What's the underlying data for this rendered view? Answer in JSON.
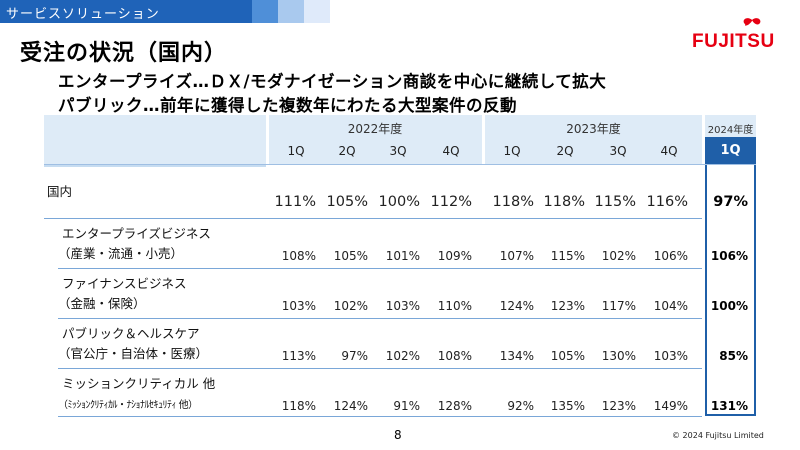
{
  "banner": {
    "label": "サービスソリューション"
  },
  "title": "受注の状況（国内）",
  "subtitles": [
    "エンタープライズ…ＤＸ/モダナイゼーション商談を中心に継続して拡大",
    "パブリック…前年に獲得した複数年にわたる大型案件の反動"
  ],
  "logo": {
    "text": "FUJITSU"
  },
  "table": {
    "years": [
      "2022年度",
      "2023年度",
      "2024年度"
    ],
    "quarters_2022": [
      "1Q",
      "2Q",
      "3Q",
      "4Q"
    ],
    "quarters_2023": [
      "1Q",
      "2Q",
      "3Q",
      "4Q"
    ],
    "quarter_2024": "1Q",
    "rows": [
      {
        "label1": "国内",
        "label2": "",
        "values": [
          "111%",
          "105%",
          "100%",
          "112%",
          "118%",
          "118%",
          "115%",
          "116%"
        ],
        "latest": "97%"
      },
      {
        "label1": "エンタープライズビジネス",
        "label2": "（産業・流通・小売）",
        "values": [
          "108%",
          "105%",
          "101%",
          "109%",
          "107%",
          "115%",
          "102%",
          "106%"
        ],
        "latest": "106%"
      },
      {
        "label1": "ファイナンスビジネス",
        "label2": "（金融・保険）",
        "values": [
          "103%",
          "102%",
          "103%",
          "110%",
          "124%",
          "123%",
          "117%",
          "104%"
        ],
        "latest": "100%"
      },
      {
        "label1": "パブリック＆ヘルスケア",
        "label2": "（官公庁・自治体・医療）",
        "values": [
          "113%",
          "97%",
          "102%",
          "108%",
          "134%",
          "105%",
          "130%",
          "103%"
        ],
        "latest": "85%"
      },
      {
        "label1": "ミッションクリティカル 他",
        "label2": "（ﾐｯｼｮﾝｸﾘﾃｨｶﾙ・ﾅｼｮﾅﾙｾｷｭﾘﾃｨ 他）",
        "values": [
          "118%",
          "124%",
          "91%",
          "128%",
          "92%",
          "135%",
          "123%",
          "149%"
        ],
        "latest": "131%"
      }
    ]
  },
  "footer": {
    "page": "8",
    "copyright": "© 2024 Fujitsu Limited"
  },
  "colors": {
    "brand_blue": "#1f5fa8",
    "header_fill": "#deebf7",
    "fujitsu_red": "#e60012"
  }
}
